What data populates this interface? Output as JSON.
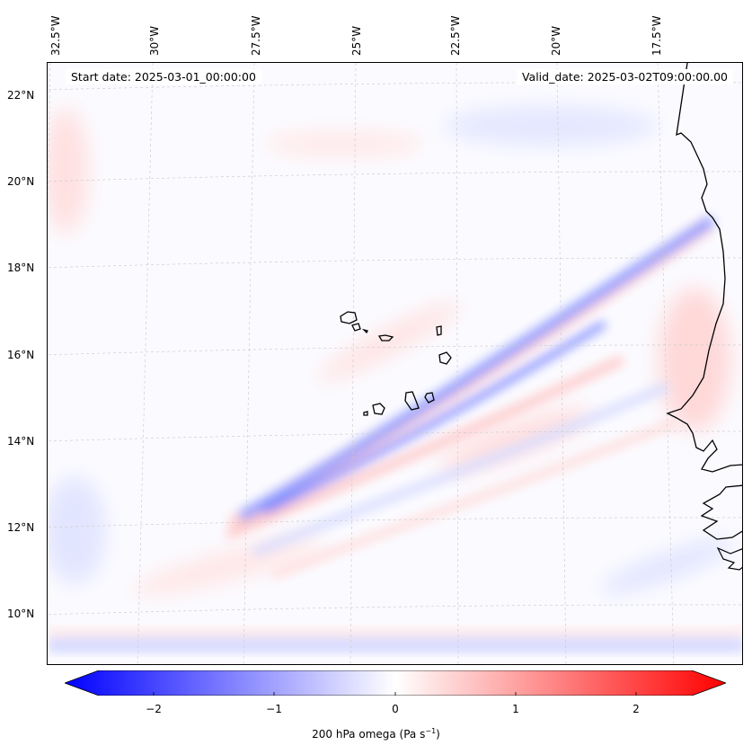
{
  "map": {
    "start_date": "Start date: 2025-03-01_00:00:00",
    "valid_date": "Valid_date: 2025-03-02T09:00:00.00",
    "lon_labels": [
      "32.5°W",
      "30°W",
      "27.5°W",
      "25°W",
      "22.5°W",
      "20°W",
      "17.5°W"
    ],
    "lat_labels": [
      "22°N",
      "20°N",
      "18°N",
      "16°N",
      "14°N",
      "12°N",
      "10°N"
    ],
    "variable": "200 hPa omega",
    "units_base": "Pa s",
    "units_exp": "−1"
  },
  "colorbar": {
    "ticks": [
      "−2",
      "−1",
      "0",
      "1",
      "2"
    ],
    "min": -2.5,
    "max": 2.5,
    "low_color": "#0000ff",
    "mid_color": "#ffffff",
    "high_color": "#ff0000"
  },
  "colors": {
    "coast": "#000000",
    "grid": "#c8c8c8",
    "negative_band": "#8f9bff",
    "positive_band": "#ffc4c4"
  }
}
